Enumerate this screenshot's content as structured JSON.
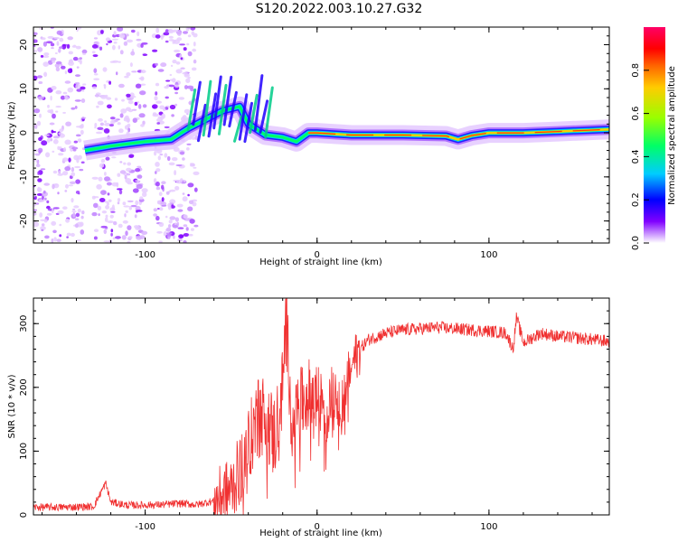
{
  "title": "S120.2022.003.10.27.G32",
  "chart_data": [
    {
      "type": "heatmap",
      "title": "S120.2022.003.10.27.G32",
      "xlabel": "Height of straight line (km)",
      "ylabel": "Frequency (Hz)",
      "xlim": [
        -165,
        170
      ],
      "ylim": [
        -25,
        24
      ],
      "x_ticks": [
        -100,
        0,
        100
      ],
      "y_ticks": [
        -20,
        -10,
        0,
        10,
        20
      ],
      "colorbar": {
        "label": "Normalized spectral amplitude",
        "range": [
          0.0,
          1.0
        ],
        "ticks": [
          "0.0",
          "0.2",
          "0.4",
          "0.6",
          "0.8"
        ],
        "colormap": [
          "#ffffff",
          "#d9b3ff",
          "#8000ff",
          "#0000ff",
          "#00ccff",
          "#00ff66",
          "#99ff00",
          "#ffcc00",
          "#ff6600",
          "#ff0000",
          "#ff0066"
        ]
      },
      "ridge": {
        "description_points": [
          [
            -135,
            -4
          ],
          [
            -120,
            -3
          ],
          [
            -100,
            -2
          ],
          [
            -85,
            -1.5
          ],
          [
            -75,
            1
          ],
          [
            -65,
            3
          ],
          [
            -55,
            5
          ],
          [
            -45,
            6
          ],
          [
            -40,
            2
          ],
          [
            -30,
            -0.5
          ],
          [
            -20,
            -1
          ],
          [
            -12,
            -2
          ],
          [
            -5,
            0
          ],
          [
            0,
            0
          ],
          [
            20,
            -0.5
          ],
          [
            50,
            -0.5
          ],
          [
            75,
            -0.7
          ],
          [
            82,
            -1.5
          ],
          [
            90,
            -0.6
          ],
          [
            100,
            0
          ],
          [
            120,
            0
          ],
          [
            140,
            0.3
          ],
          [
            170,
            0.8
          ]
        ]
      }
    },
    {
      "type": "line",
      "xlabel": "Height of straight line (km)",
      "ylabel": "SNR (10 * v/v)",
      "xlim": [
        -165,
        170
      ],
      "ylim": [
        0,
        340
      ],
      "x_ticks": [
        -100,
        0,
        100
      ],
      "y_ticks": [
        0,
        100,
        200,
        300
      ],
      "color": "#f03030",
      "x": [
        -165,
        -150,
        -130,
        -123,
        -120,
        -110,
        -90,
        -80,
        -70,
        -60,
        -50,
        -45,
        -40,
        -35,
        -30,
        -25,
        -20,
        -18,
        -15,
        -10,
        -5,
        0,
        5,
        10,
        15,
        20,
        25,
        30,
        40,
        50,
        60,
        70,
        80,
        90,
        100,
        105,
        110,
        114,
        116,
        120,
        130,
        140,
        150,
        160,
        170
      ],
      "y": [
        12,
        12,
        13,
        50,
        20,
        15,
        16,
        18,
        16,
        22,
        40,
        70,
        110,
        150,
        160,
        120,
        200,
        320,
        150,
        170,
        190,
        185,
        160,
        200,
        180,
        235,
        260,
        275,
        285,
        290,
        292,
        294,
        292,
        290,
        288,
        287,
        285,
        260,
        310,
        270,
        285,
        280,
        278,
        275,
        272
      ]
    }
  ]
}
